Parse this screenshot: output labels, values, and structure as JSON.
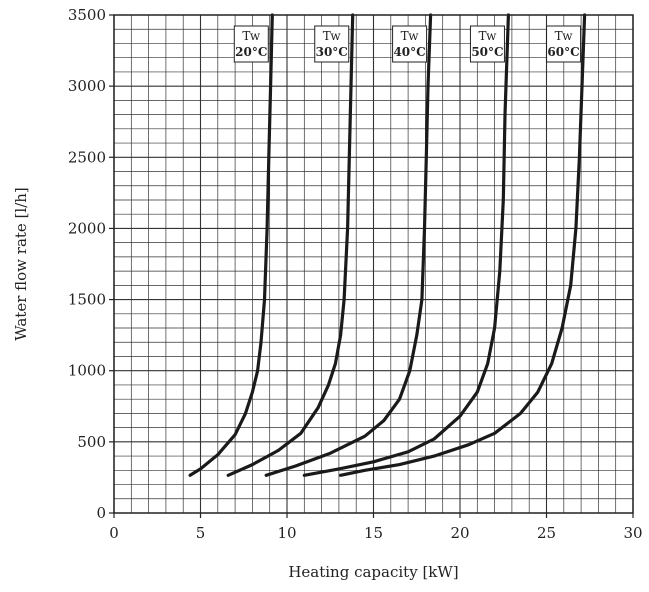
{
  "chart_data": {
    "type": "line",
    "xlabel": "Heating capacity [kW]",
    "ylabel": "Water flow rate [l/h]",
    "xlim": [
      0,
      30
    ],
    "ylim": [
      0,
      3500
    ],
    "x_ticks": [
      "0",
      "5",
      "10",
      "15",
      "20",
      "25",
      "30"
    ],
    "y_ticks": [
      "0",
      "500",
      "1000",
      "1500",
      "2000",
      "2500",
      "3000",
      "3500"
    ],
    "grid": true,
    "series": [
      {
        "name": "Tw 20°C",
        "label_line1": "Tw",
        "label_line2": "20°C",
        "x": [
          4.4,
          5.0,
          6.0,
          7.0,
          7.6,
          8.0,
          8.3,
          8.5,
          8.7,
          8.85,
          8.95,
          9.05,
          9.15
        ],
        "y": [
          265,
          310,
          410,
          550,
          700,
          850,
          1000,
          1200,
          1500,
          2000,
          2500,
          3000,
          3500
        ]
      },
      {
        "name": "Tw 30°C",
        "label_line1": "Tw",
        "label_line2": "30°C",
        "x": [
          6.6,
          8.0,
          9.5,
          10.8,
          11.8,
          12.4,
          12.8,
          13.1,
          13.3,
          13.5,
          13.6,
          13.7,
          13.8
        ],
        "y": [
          265,
          340,
          440,
          560,
          740,
          900,
          1050,
          1250,
          1500,
          2000,
          2500,
          3000,
          3500
        ]
      },
      {
        "name": "Tw 40°C",
        "label_line1": "Tw",
        "label_line2": "40°C",
        "x": [
          8.8,
          10.5,
          12.5,
          14.5,
          15.6,
          16.5,
          17.1,
          17.5,
          17.8,
          17.95,
          18.05,
          18.15,
          18.3
        ],
        "y": [
          265,
          330,
          420,
          540,
          650,
          800,
          1000,
          1250,
          1500,
          2000,
          2500,
          3000,
          3500
        ]
      },
      {
        "name": "Tw 50°C",
        "label_line1": "Tw",
        "label_line2": "50°C",
        "x": [
          11.0,
          13.0,
          15.0,
          17.0,
          18.5,
          20.0,
          21.0,
          21.6,
          22.0,
          22.3,
          22.5,
          22.6,
          22.8
        ],
        "y": [
          265,
          310,
          360,
          430,
          520,
          680,
          850,
          1050,
          1300,
          1700,
          2200,
          2800,
          3500
        ]
      },
      {
        "name": "Tw 60°C",
        "label_line1": "Tw",
        "label_line2": "60°C",
        "x": [
          13.1,
          14.5,
          16.5,
          18.5,
          20.5,
          22.0,
          23.5,
          24.5,
          25.3,
          25.9,
          26.4,
          26.7,
          26.9,
          27.05,
          27.2
        ],
        "y": [
          265,
          300,
          340,
          400,
          480,
          560,
          700,
          850,
          1050,
          1300,
          1600,
          2000,
          2500,
          3000,
          3500
        ]
      }
    ]
  }
}
